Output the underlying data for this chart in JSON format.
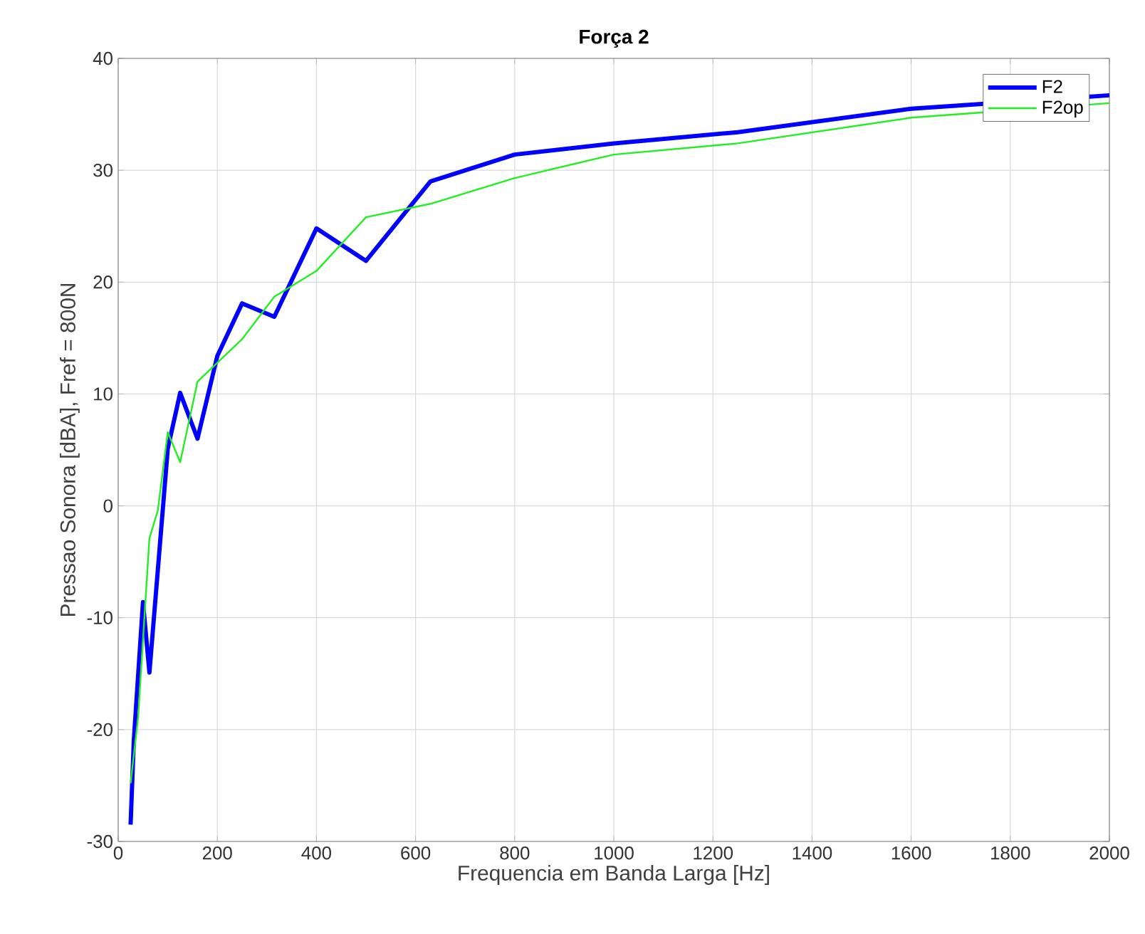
{
  "chart_data": {
    "type": "line",
    "title": "Força 2",
    "xlabel": "Frequencia em Banda Larga [Hz]",
    "ylabel": "Pressao Sonora [dBA], Fref = 800N",
    "xlim": [
      0,
      2000
    ],
    "ylim": [
      -30,
      40
    ],
    "xticks": [
      0,
      200,
      400,
      600,
      800,
      1000,
      1200,
      1400,
      1600,
      1800,
      2000
    ],
    "yticks": [
      -30,
      -20,
      -10,
      0,
      10,
      20,
      30,
      40
    ],
    "grid": true,
    "legend": "top right",
    "line_style": "solid",
    "series": [
      {
        "name": "F2",
        "color": "#0000ff",
        "x": [
          25,
          31.5,
          50,
          63,
          100,
          125,
          160,
          200,
          250,
          315,
          400,
          500,
          630,
          800,
          1000,
          1250,
          1600,
          2000
        ],
        "values": [
          -28.5,
          -21,
          -8.6,
          -14.9,
          5.1,
          10.1,
          6.0,
          13.4,
          18.1,
          16.9,
          24.8,
          21.9,
          29.0,
          31.4,
          32.4,
          33.4,
          35.5,
          36.7
        ]
      },
      {
        "name": "F2op",
        "color": "#22ee22",
        "x": [
          25,
          40,
          63,
          80,
          100,
          125,
          160,
          250,
          315,
          400,
          500,
          630,
          800,
          1000,
          1250,
          1600,
          2000
        ],
        "values": [
          -24.8,
          -19,
          -2.9,
          -0.4,
          6.6,
          3.9,
          11.1,
          14.9,
          18.7,
          21.0,
          25.8,
          27.0,
          29.3,
          31.4,
          32.4,
          34.7,
          36.0
        ]
      }
    ]
  }
}
